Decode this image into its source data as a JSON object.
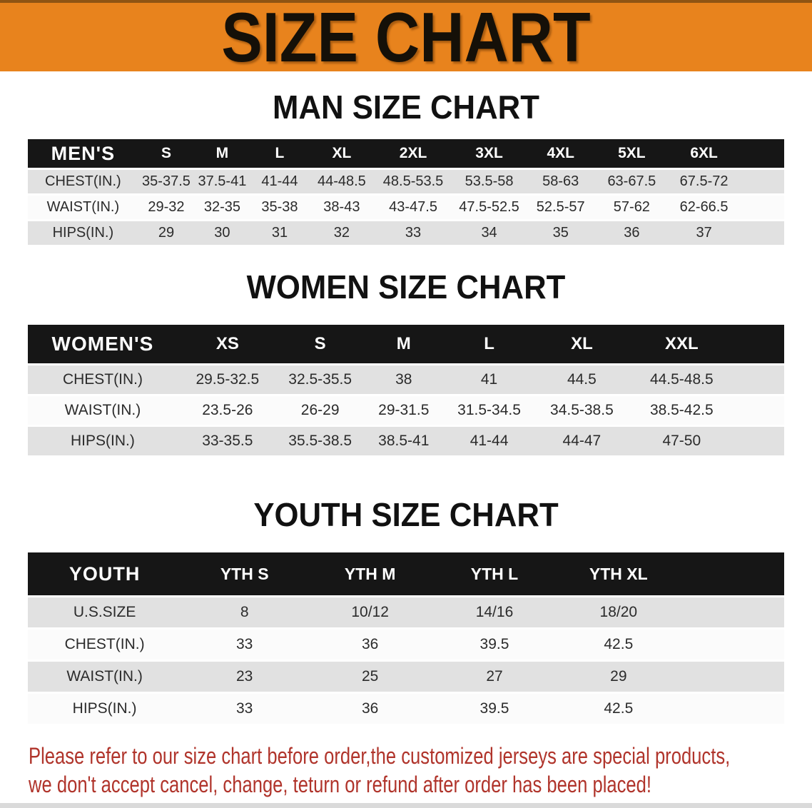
{
  "banner": {
    "title": "SIZE CHART",
    "bg_color": "#E8831D"
  },
  "sections": {
    "men": {
      "id": "men",
      "title": "MAN SIZE CHART",
      "header": [
        "MEN'S",
        "S",
        "M",
        "L",
        "XL",
        "2XL",
        "3XL",
        "4XL",
        "5XL",
        "6XL"
      ],
      "rows": [
        {
          "label": "CHEST(IN.)",
          "values": [
            "35-37.5",
            "37.5-41",
            "41-44",
            "44-48.5",
            "48.5-53.5",
            "53.5-58",
            "58-63",
            "63-67.5",
            "67.5-72"
          ]
        },
        {
          "label": "WAIST(IN.)",
          "values": [
            "29-32",
            "32-35",
            "35-38",
            "38-43",
            "43-47.5",
            "47.5-52.5",
            "52.5-57",
            "57-62",
            "62-66.5"
          ]
        },
        {
          "label": "HIPS(IN.)",
          "values": [
            "29",
            "30",
            "31",
            "32",
            "33",
            "34",
            "35",
            "36",
            "37"
          ]
        }
      ]
    },
    "women": {
      "id": "women",
      "title": "WOMEN SIZE CHART",
      "header": [
        "WOMEN'S",
        "XS",
        "S",
        "M",
        "L",
        "XL",
        "XXL"
      ],
      "rows": [
        {
          "label": "CHEST(IN.)",
          "values": [
            "29.5-32.5",
            "32.5-35.5",
            "38",
            "41",
            "44.5",
            "44.5-48.5"
          ]
        },
        {
          "label": "WAIST(IN.)",
          "values": [
            "23.5-26",
            "26-29",
            "29-31.5",
            "31.5-34.5",
            "34.5-38.5",
            "38.5-42.5"
          ]
        },
        {
          "label": "HIPS(IN.)",
          "values": [
            "33-35.5",
            "35.5-38.5",
            "38.5-41",
            "41-44",
            "44-47",
            "47-50"
          ]
        }
      ]
    },
    "youth": {
      "id": "youth",
      "title": "YOUTH SIZE CHART",
      "header": [
        "YOUTH",
        "YTH S",
        "YTH M",
        "YTH L",
        "YTH XL"
      ],
      "rows": [
        {
          "label": "U.S.SIZE",
          "values": [
            "8",
            "10/12",
            "14/16",
            "18/20"
          ]
        },
        {
          "label": "CHEST(IN.)",
          "values": [
            "33",
            "36",
            "39.5",
            "42.5"
          ]
        },
        {
          "label": "WAIST(IN.)",
          "values": [
            "23",
            "25",
            "27",
            "29"
          ]
        },
        {
          "label": "HIPS(IN.)",
          "values": [
            "33",
            "36",
            "39.5",
            "42.5"
          ]
        }
      ]
    }
  },
  "disclaimer": {
    "line1": "Please refer to our size chart before order,the customized jerseys are special products,",
    "line2": "we don't accept cancel, change, teturn or refund after order has been placed!",
    "color": "#B0342B"
  }
}
